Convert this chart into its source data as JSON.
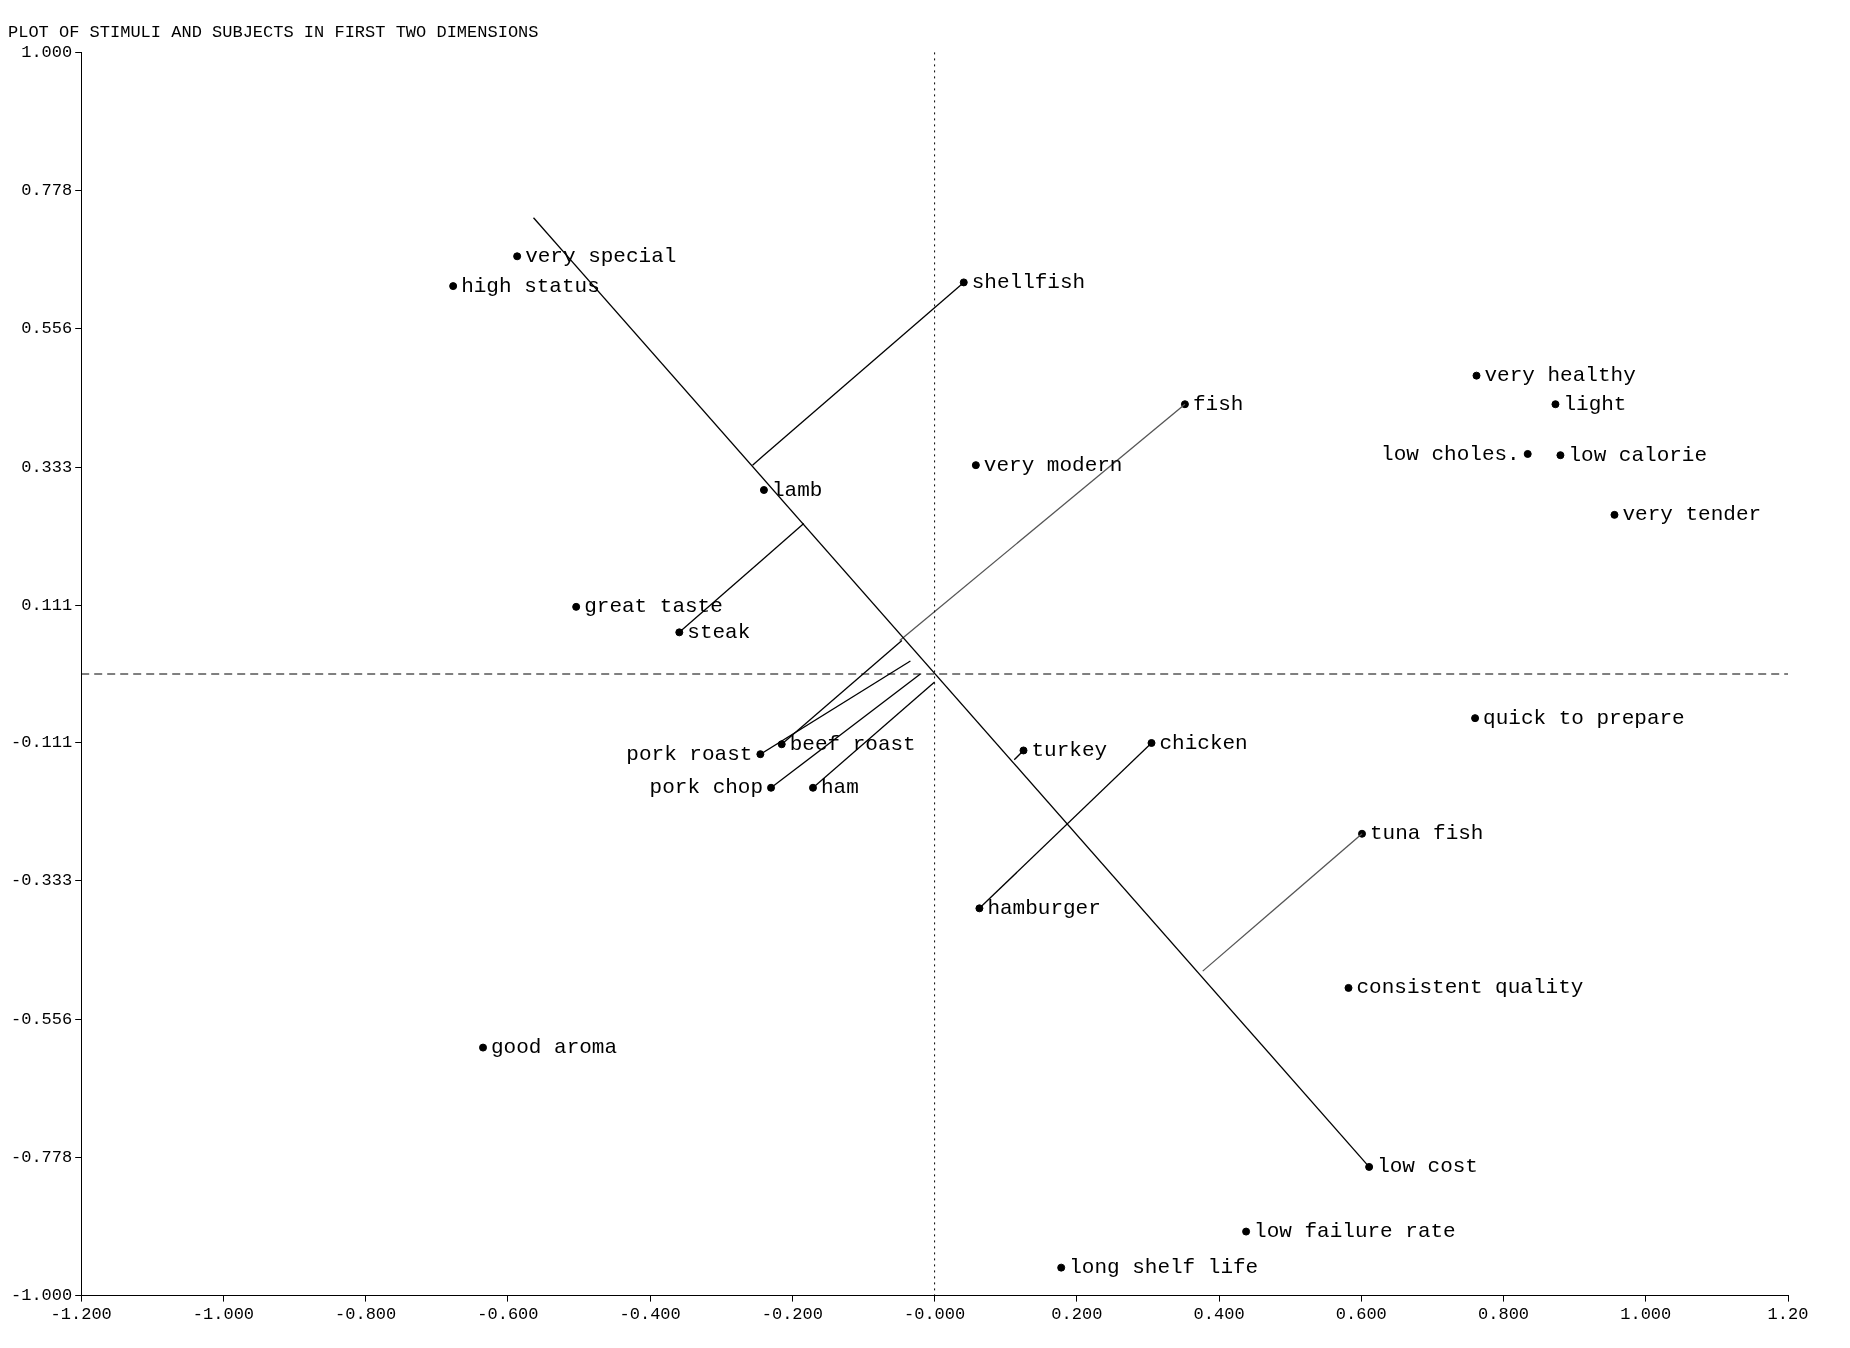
{
  "chart_data": {
    "type": "scatter",
    "title": "PLOT OF STIMULI AND SUBJECTS IN FIRST TWO DIMENSIONS",
    "xlim": [
      -1.2,
      1.2
    ],
    "xticks": [
      {
        "value": -1.2,
        "label": "-1.200"
      },
      {
        "value": -1.0,
        "label": "-1.000"
      },
      {
        "value": -0.8,
        "label": "-0.800"
      },
      {
        "value": -0.6,
        "label": "-0.600"
      },
      {
        "value": -0.4,
        "label": "-0.400"
      },
      {
        "value": -0.2,
        "label": "-0.200"
      },
      {
        "value": 0,
        "label": "-0.000"
      },
      {
        "value": 0.2,
        "label": "0.200"
      },
      {
        "value": 0.4,
        "label": "0.400"
      },
      {
        "value": 0.6,
        "label": "0.600"
      },
      {
        "value": 0.8,
        "label": "0.800"
      },
      {
        "value": 1.0,
        "label": "1.000"
      },
      {
        "value": 1.2,
        "label": "1.20"
      }
    ],
    "ylim": [
      -1,
      1
    ],
    "yticks": [
      {
        "value": 1,
        "label": "1.000"
      },
      0.778,
      0.556,
      0.333,
      0.111,
      -0.111,
      -0.333,
      -0.556,
      -0.778,
      {
        "value": -1,
        "label": "-1.000"
      }
    ],
    "grid": false,
    "legend": false,
    "marker": "circle",
    "ref_lines": [
      {
        "axis": "y",
        "value": 0,
        "line_style": "dashed"
      },
      {
        "axis": "x",
        "value": 0,
        "line_style": "dotted"
      }
    ],
    "series": [
      {
        "type": "line",
        "marker": "none",
        "color": "#000000",
        "x": [
          -0.564,
          0.611
        ],
        "values": [
          0.734,
          -0.793
        ]
      },
      {
        "type": "line",
        "marker": "none",
        "color": "#000000",
        "x": [
          0.041,
          -0.256
        ],
        "values": [
          0.63,
          0.336
        ]
      },
      {
        "type": "line",
        "marker": "none",
        "color": "#555555",
        "x": [
          0.352,
          -0.049
        ],
        "values": [
          0.434,
          0.054
        ]
      },
      {
        "type": "line",
        "marker": "none",
        "color": "#000000",
        "x": [
          -0.359,
          -0.184
        ],
        "values": [
          0.067,
          0.242
        ]
      },
      {
        "type": "line",
        "marker": "none",
        "color": "#000000",
        "x": [
          -0.215,
          -0.046
        ],
        "values": [
          -0.113,
          0.054
        ]
      },
      {
        "type": "line",
        "marker": "none",
        "color": "#000000",
        "x": [
          -0.245,
          -0.034
        ],
        "values": [
          -0.129,
          0.021
        ]
      },
      {
        "type": "line",
        "marker": "none",
        "color": "#000000",
        "x": [
          -0.23,
          -0.02
        ],
        "values": [
          -0.183,
          0
        ]
      },
      {
        "type": "line",
        "marker": "none",
        "color": "#000000",
        "x": [
          -0.171,
          0
        ],
        "values": [
          -0.183,
          -0.013
        ]
      },
      {
        "type": "line",
        "marker": "none",
        "color": "#000000",
        "x": [
          0.125,
          0.112
        ],
        "values": [
          -0.123,
          -0.138
        ]
      },
      {
        "type": "line",
        "marker": "none",
        "color": "#000000",
        "x": [
          0.063,
          0.305
        ],
        "values": [
          -0.377,
          -0.111
        ]
      },
      {
        "type": "line",
        "marker": "none",
        "color": "#555555",
        "x": [
          0.601,
          0.377
        ],
        "values": [
          -0.257,
          -0.478
        ]
      },
      {
        "name": "very special",
        "color": "#000000",
        "x": [
          -0.587
        ],
        "values": [
          0.672
        ]
      },
      {
        "name": "high status",
        "color": "#000000",
        "x": [
          -0.677
        ],
        "values": [
          0.624
        ]
      },
      {
        "name": "shellfish",
        "color": "#000000",
        "x": [
          0.041
        ],
        "values": [
          0.63
        ]
      },
      {
        "name": "fish",
        "color": "#000000",
        "x": [
          0.352
        ],
        "values": [
          0.434
        ]
      },
      {
        "name": "very modern",
        "color": "#000000",
        "x": [
          0.058
        ],
        "values": [
          0.336
        ]
      },
      {
        "name": "lamb",
        "color": "#000000",
        "x": [
          -0.24
        ],
        "values": [
          0.296
        ]
      },
      {
        "name": "great taste",
        "color": "#000000",
        "x": [
          -0.504
        ],
        "values": [
          0.108
        ]
      },
      {
        "name": "steak",
        "color": "#000000",
        "x": [
          -0.359
        ],
        "values": [
          0.067
        ]
      },
      {
        "name": "beef roast",
        "color": "#000000",
        "x": [
          -0.215
        ],
        "values": [
          -0.113
        ]
      },
      {
        "name": "pork roast",
        "color": "#000000",
        "x": [
          -0.245
        ],
        "values": [
          -0.129
        ]
      },
      {
        "name": "pork chop",
        "color": "#000000",
        "x": [
          -0.23
        ],
        "values": [
          -0.183
        ]
      },
      {
        "name": "ham",
        "color": "#000000",
        "x": [
          -0.171
        ],
        "values": [
          -0.183
        ]
      },
      {
        "name": "turkey",
        "color": "#000000",
        "x": [
          0.125
        ],
        "values": [
          -0.123
        ]
      },
      {
        "name": "chicken",
        "color": "#000000",
        "x": [
          0.305
        ],
        "values": [
          -0.111
        ]
      },
      {
        "name": "hamburger",
        "color": "#000000",
        "x": [
          0.063
        ],
        "values": [
          -0.377
        ]
      },
      {
        "name": "tuna fish",
        "color": "#000000",
        "x": [
          0.601
        ],
        "values": [
          -0.257
        ]
      },
      {
        "name": "low cost",
        "color": "#000000",
        "x": [
          0.611
        ],
        "values": [
          -0.793
        ]
      },
      {
        "name": "low failure rate",
        "color": "#000000",
        "x": [
          0.438
        ],
        "values": [
          -0.897
        ]
      },
      {
        "name": "long shelf life",
        "color": "#000000",
        "x": [
          0.178
        ],
        "values": [
          -0.955
        ]
      },
      {
        "name": "consistent quality",
        "color": "#000000",
        "x": [
          0.582
        ],
        "values": [
          -0.505
        ]
      },
      {
        "name": "quick to prepare",
        "color": "#000000",
        "x": [
          0.76
        ],
        "values": [
          -0.071
        ]
      },
      {
        "name": "good aroma",
        "color": "#000000",
        "x": [
          -0.635
        ],
        "values": [
          -0.601
        ]
      },
      {
        "name": "very healthy",
        "color": "#000000",
        "x": [
          0.762
        ],
        "values": [
          0.48
        ]
      },
      {
        "name": "light",
        "color": "#000000",
        "x": [
          0.873
        ],
        "values": [
          0.434
        ]
      },
      {
        "name": "low choles.",
        "color": "#000000",
        "x": [
          0.834
        ],
        "values": [
          0.354
        ]
      },
      {
        "name": "low calorie",
        "color": "#000000",
        "x": [
          0.88
        ],
        "values": [
          0.352
        ]
      },
      {
        "name": "very tender",
        "color": "#000000",
        "x": [
          0.956
        ],
        "values": [
          0.256
        ]
      }
    ]
  }
}
